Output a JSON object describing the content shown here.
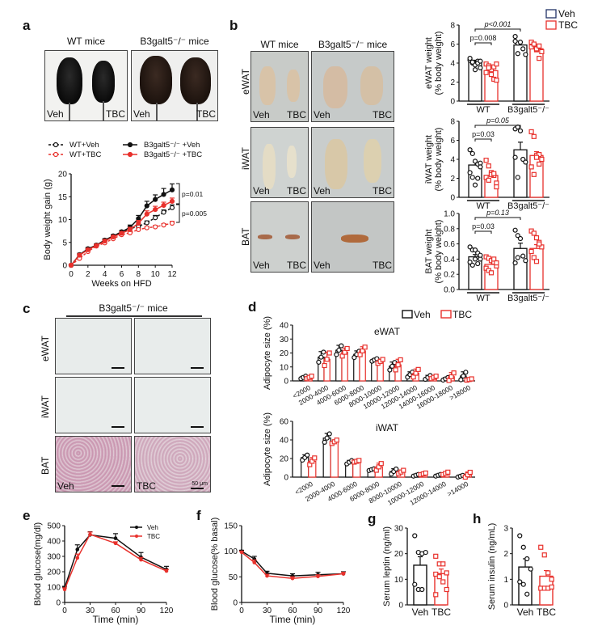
{
  "panels": {
    "a": {
      "letter": "a",
      "photo_titles": [
        "WT mice",
        "B3galt5⁻/⁻ mice"
      ],
      "photo_labels": {
        "left": "Veh",
        "right": "TBC"
      }
    },
    "b": {
      "letter": "b",
      "col_titles": [
        "WT mice",
        "B3galt5⁻/⁻ mice"
      ],
      "row_labels": [
        "eWAT",
        "iWAT",
        "BAT"
      ],
      "photo_labels": {
        "left": "Veh",
        "right": "TBC"
      }
    },
    "c": {
      "letter": "c",
      "title": "B3galt5⁻/⁻ mice",
      "row_labels": [
        "eWAT",
        "iWAT",
        "BAT"
      ],
      "bottom_labels": {
        "left": "Veh",
        "right": "TBC"
      },
      "scale_label": "50 μm"
    },
    "d": {
      "letter": "d"
    },
    "e": {
      "letter": "e"
    },
    "f": {
      "letter": "f"
    },
    "g": {
      "letter": "g"
    },
    "h": {
      "letter": "h"
    }
  },
  "colors": {
    "veh": "#111111",
    "tbc": "#e8312c"
  },
  "chart_data": [
    {
      "id": "a-body-weight",
      "type": "line",
      "title": "",
      "xlabel": "Weeks on HFD",
      "ylabel": "Body weight gain (g)",
      "xlim": [
        0,
        12
      ],
      "ylim": [
        0,
        20
      ],
      "xticks": [
        0,
        2,
        4,
        6,
        8,
        10,
        12
      ],
      "yticks": [
        0,
        5,
        10,
        15,
        20
      ],
      "x": [
        0,
        1,
        2,
        3,
        4,
        5,
        6,
        7,
        8,
        9,
        10,
        11,
        12
      ],
      "legend_position": "top",
      "series": [
        {
          "name": "WT+Veh",
          "style": "dashed-open-black",
          "values": [
            0,
            2.3,
            3.5,
            4.3,
            5.4,
            6.4,
            7.3,
            8.0,
            8.5,
            9.3,
            10.4,
            11.6,
            12.6
          ],
          "err": [
            0,
            0.3,
            0.3,
            0.3,
            0.3,
            0.3,
            0.3,
            0.4,
            0.4,
            0.4,
            0.5,
            0.5,
            0.6
          ]
        },
        {
          "name": "WT+TBC",
          "style": "dashed-open-red",
          "values": [
            0,
            1.5,
            3.0,
            4.2,
            4.9,
            5.8,
            6.7,
            7.1,
            7.8,
            8.2,
            8.4,
            8.8,
            9.2
          ],
          "err": [
            0,
            0.3,
            0.3,
            0.3,
            0.3,
            0.3,
            0.3,
            0.3,
            0.3,
            0.3,
            0.3,
            0.3,
            0.4
          ]
        },
        {
          "name": "B3galt5⁻/⁻ +Veh",
          "style": "solid-filled-black",
          "values": [
            0,
            2.3,
            3.6,
            4.4,
            5.5,
            6.4,
            7.3,
            8.3,
            10.2,
            13.0,
            14.4,
            15.5,
            16.5
          ],
          "err": [
            0,
            0.3,
            0.3,
            0.3,
            0.3,
            0.3,
            0.3,
            0.5,
            0.7,
            1.0,
            1.0,
            1.3,
            1.3
          ]
        },
        {
          "name": "B3galt5⁻/⁻ +TBC",
          "style": "solid-filled-red",
          "values": [
            0,
            2.2,
            3.4,
            4.3,
            5.3,
            6.2,
            7.0,
            7.8,
            9.2,
            11.2,
            12.2,
            13.1,
            14.0
          ],
          "err": [
            0,
            0.3,
            0.3,
            0.3,
            0.3,
            0.3,
            0.3,
            0.5,
            0.6,
            0.7,
            0.7,
            0.7,
            0.7
          ]
        }
      ],
      "annotations": [
        "p=0.01",
        "p=0.005"
      ]
    },
    {
      "id": "b-ewat",
      "type": "bar",
      "ylabel": "eWAT weight\n(% body weight)",
      "categories": [
        "WT",
        "B3galt5⁻/⁻"
      ],
      "ylim": [
        0,
        8
      ],
      "yticks": [
        0,
        2,
        4,
        6,
        8
      ],
      "series": [
        {
          "name": "Veh",
          "values": [
            4.1,
            5.9
          ],
          "err": [
            0.2,
            0.3
          ],
          "points": [
            [
              4.3,
              4.0,
              3.8,
              4.2,
              3.5,
              4.5,
              4.1,
              3.3,
              4.0,
              4.2
            ],
            [
              6.8,
              6.1,
              6.2,
              5.5,
              4.9,
              6.3,
              5.0
            ]
          ]
        },
        {
          "name": "TBC",
          "values": [
            3.2,
            5.5
          ],
          "err": [
            0.2,
            0.2
          ],
          "points": [
            [
              3.9,
              3.7,
              3.3,
              2.3,
              2.2,
              3.0,
              3.5,
              2.8,
              3.6,
              3.9
            ],
            [
              6.2,
              5.9,
              5.4,
              4.5,
              5.2,
              5.7,
              6.0,
              5.5,
              5.8
            ]
          ]
        }
      ],
      "legend": [
        "Veh",
        "TBC"
      ],
      "legend_position": "top-right",
      "annotations": [
        "p=0.008",
        "p<0.001"
      ]
    },
    {
      "id": "b-iwat",
      "type": "bar",
      "ylabel": "iWAT weight\n(% body weight)",
      "categories": [
        "WT",
        "B3galt5⁻/⁻"
      ],
      "ylim": [
        0,
        8
      ],
      "yticks": [
        0,
        2,
        4,
        6,
        8
      ],
      "series": [
        {
          "name": "Veh",
          "values": [
            3.4,
            5.0
          ],
          "err": [
            0.3,
            0.8
          ],
          "points": [
            [
              5.0,
              4.6,
              3.8,
              3.5,
              3.6,
              2.6,
              2.1,
              1.3,
              2.0,
              3.2
            ],
            [
              7.2,
              7.4,
              7.0,
              4.0,
              3.7,
              4.2,
              2.1
            ]
          ]
        },
        {
          "name": "TBC",
          "values": [
            2.3,
            4.4
          ],
          "err": [
            0.2,
            0.4
          ],
          "points": [
            [
              3.9,
              3.3,
              2.6,
              2.3,
              1.5,
              2.1,
              1.8,
              2.4,
              2.5,
              1.1
            ],
            [
              6.9,
              6.4,
              4.4,
              4.5,
              4.0,
              3.2,
              2.4,
              4.2,
              3.5
            ]
          ]
        }
      ],
      "annotations": [
        "p=0.03",
        "p=0.05"
      ]
    },
    {
      "id": "b-bat",
      "type": "bar",
      "ylabel": "BAT weight\n(% body weight)",
      "categories": [
        "WT",
        "B3galt5⁻/⁻"
      ],
      "ylim": [
        0,
        1.0
      ],
      "yticks": [
        0.0,
        0.2,
        0.4,
        0.6,
        0.8,
        1.0
      ],
      "series": [
        {
          "name": "Veh",
          "values": [
            0.43,
            0.54
          ],
          "err": [
            0.03,
            0.07
          ],
          "points": [
            [
              0.56,
              0.52,
              0.52,
              0.48,
              0.4,
              0.36,
              0.32,
              0.4,
              0.34,
              0.45
            ],
            [
              0.78,
              0.71,
              0.67,
              0.44,
              0.38,
              0.35,
              0.42
            ]
          ]
        },
        {
          "name": "TBC",
          "values": [
            0.33,
            0.54
          ],
          "err": [
            0.03,
            0.05
          ],
          "points": [
            [
              0.43,
              0.41,
              0.38,
              0.36,
              0.31,
              0.28,
              0.25,
              0.22,
              0.4,
              0.35
            ],
            [
              0.77,
              0.74,
              0.68,
              0.62,
              0.56,
              0.5,
              0.42,
              0.37,
              0.6
            ]
          ]
        }
      ],
      "annotations": [
        "p=0.03",
        "p=0.13"
      ]
    },
    {
      "id": "d-ewat",
      "type": "bar",
      "title": "eWAT",
      "ylabel": "Adipocyte size (%)",
      "categories": [
        "<2000",
        "2000-4000",
        "4000-6000",
        "6000-8000",
        "8000-10000",
        "10000-12000",
        "12000-14000",
        "14000-16000",
        "16000-18000",
        ">18000"
      ],
      "ylim": [
        0,
        40
      ],
      "yticks": [
        0,
        10,
        20,
        30,
        40
      ],
      "legend": [
        "Veh",
        "TBC"
      ],
      "legend_position": "top-right",
      "series": [
        {
          "name": "Veh",
          "values": [
            2.5,
            17,
            22,
            19,
            15,
            10.5,
            4.5,
            2.5,
            1.5,
            3.5
          ],
          "err": [
            1,
            4,
            3.5,
            2.5,
            1,
            3,
            2,
            1.5,
            1,
            3
          ]
        },
        {
          "name": "TBC",
          "values": [
            2.5,
            15.5,
            20.5,
            21.5,
            14,
            11.5,
            5.5,
            2.5,
            3,
            1
          ],
          "err": [
            1,
            5,
            3,
            3,
            1.5,
            4,
            3,
            1,
            3,
            0.5
          ]
        }
      ]
    },
    {
      "id": "d-iwat",
      "type": "bar",
      "title": "iWAT",
      "ylabel": "Adipocyte size (%)",
      "categories": [
        "<2000",
        "2000-4000",
        "4000-6000",
        "6000-8000",
        "8000-10000",
        "10000-12000",
        "12000-14000",
        ">14000"
      ],
      "ylim": [
        0,
        60
      ],
      "yticks": [
        0,
        20,
        40,
        60
      ],
      "series": [
        {
          "name": "Veh",
          "values": [
            21,
            42,
            16,
            8,
            6,
            2,
            2,
            1
          ],
          "err": [
            3,
            5,
            2,
            1,
            3,
            1,
            1,
            1
          ]
        },
        {
          "name": "TBC",
          "values": [
            17,
            38,
            17,
            11,
            5.5,
            3.5,
            4,
            2.5
          ],
          "err": [
            4,
            2,
            1,
            4,
            2,
            1,
            1.5,
            3
          ]
        }
      ]
    },
    {
      "id": "e-gtt",
      "type": "line",
      "xlabel": "Time (min)",
      "ylabel": "Blood glucose(mg/dl)",
      "x": [
        0,
        15,
        30,
        60,
        90,
        120
      ],
      "xlim": [
        0,
        120
      ],
      "xticks": [
        0,
        30,
        60,
        90,
        120
      ],
      "ylim": [
        0,
        500
      ],
      "yticks": [
        0,
        100,
        200,
        300,
        400,
        500
      ],
      "legend_position": "top-right",
      "series": [
        {
          "name": "Veh",
          "values": [
            95,
            345,
            440,
            418,
            295,
            215
          ],
          "err": [
            10,
            30,
            20,
            30,
            30,
            20
          ]
        },
        {
          "name": "TBC",
          "values": [
            85,
            290,
            443,
            385,
            278,
            205
          ],
          "err": [
            10,
            25,
            15,
            10,
            15,
            10
          ]
        }
      ]
    },
    {
      "id": "f-itt",
      "type": "line",
      "xlabel": "Time (min)",
      "ylabel": "Blood glucose(% basal)",
      "x": [
        0,
        15,
        30,
        60,
        90,
        120
      ],
      "xlim": [
        0,
        120
      ],
      "xticks": [
        0,
        30,
        60,
        90,
        120
      ],
      "ylim": [
        0,
        150
      ],
      "yticks": [
        0,
        50,
        100,
        150
      ],
      "series": [
        {
          "name": "Veh",
          "values": [
            100,
            85,
            57,
            52,
            54,
            56
          ],
          "err": [
            2,
            5,
            4,
            4,
            5,
            4
          ]
        },
        {
          "name": "TBC",
          "values": [
            98,
            78,
            52,
            47,
            51,
            56
          ],
          "err": [
            2,
            5,
            3,
            3,
            3,
            3
          ]
        }
      ]
    },
    {
      "id": "g-leptin",
      "type": "bar",
      "ylabel": "Serum leptin (ng/ml)",
      "categories": [
        "Veh",
        "TBC"
      ],
      "ylim": [
        0,
        30
      ],
      "yticks": [
        0,
        10,
        20,
        30
      ],
      "series": [
        {
          "name": "Veh",
          "values": [
            15.5
          ],
          "err": [
            3.3
          ],
          "points": [
            [
              27,
              20.5,
              20,
              20.5,
              8,
              6,
              6
            ]
          ]
        },
        {
          "name": "TBC",
          "values": [
            12.2
          ],
          "err": [
            1.8
          ],
          "points": [
            [
              19,
              16,
              16,
              12.5,
              12,
              11,
              9,
              6,
              4
            ]
          ]
        }
      ]
    },
    {
      "id": "h-insulin",
      "type": "bar",
      "ylabel": "Serum insulin (ng/mL)",
      "categories": [
        "Veh",
        "TBC"
      ],
      "ylim": [
        0,
        3
      ],
      "yticks": [
        0,
        1,
        2,
        3
      ],
      "series": [
        {
          "name": "Veh",
          "values": [
            1.48
          ],
          "err": [
            0.32
          ],
          "points": [
            [
              2.7,
              2.25,
              1.8,
              1.4,
              0.9,
              0.8,
              0.42
            ]
          ]
        },
        {
          "name": "TBC",
          "values": [
            1.12
          ],
          "err": [
            0.22
          ],
          "points": [
            [
              2.25,
              1.95,
              1.25,
              1.0,
              0.65,
              0.65,
              0.65,
              0.7
            ]
          ]
        }
      ]
    }
  ]
}
